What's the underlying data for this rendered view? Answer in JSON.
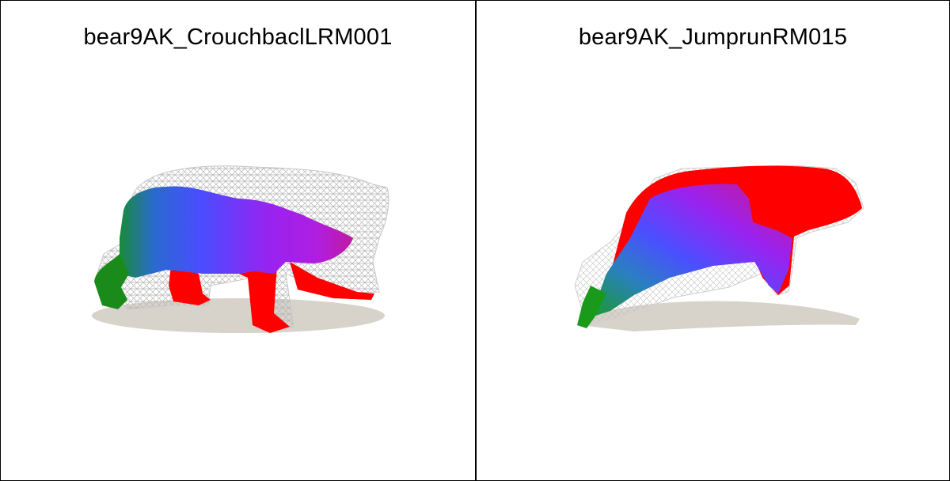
{
  "panels": [
    {
      "title": "bear9AK_CrouchbaclLRM001"
    },
    {
      "title": "bear9AK_JumprunRM015"
    }
  ],
  "colors": {
    "shadow": "#d8d3ca",
    "wireframe": "#bdbdbd",
    "red": "#ff0000",
    "violet": "#a020f0",
    "blue": "#4040ff",
    "green": "#1a8a1a"
  }
}
